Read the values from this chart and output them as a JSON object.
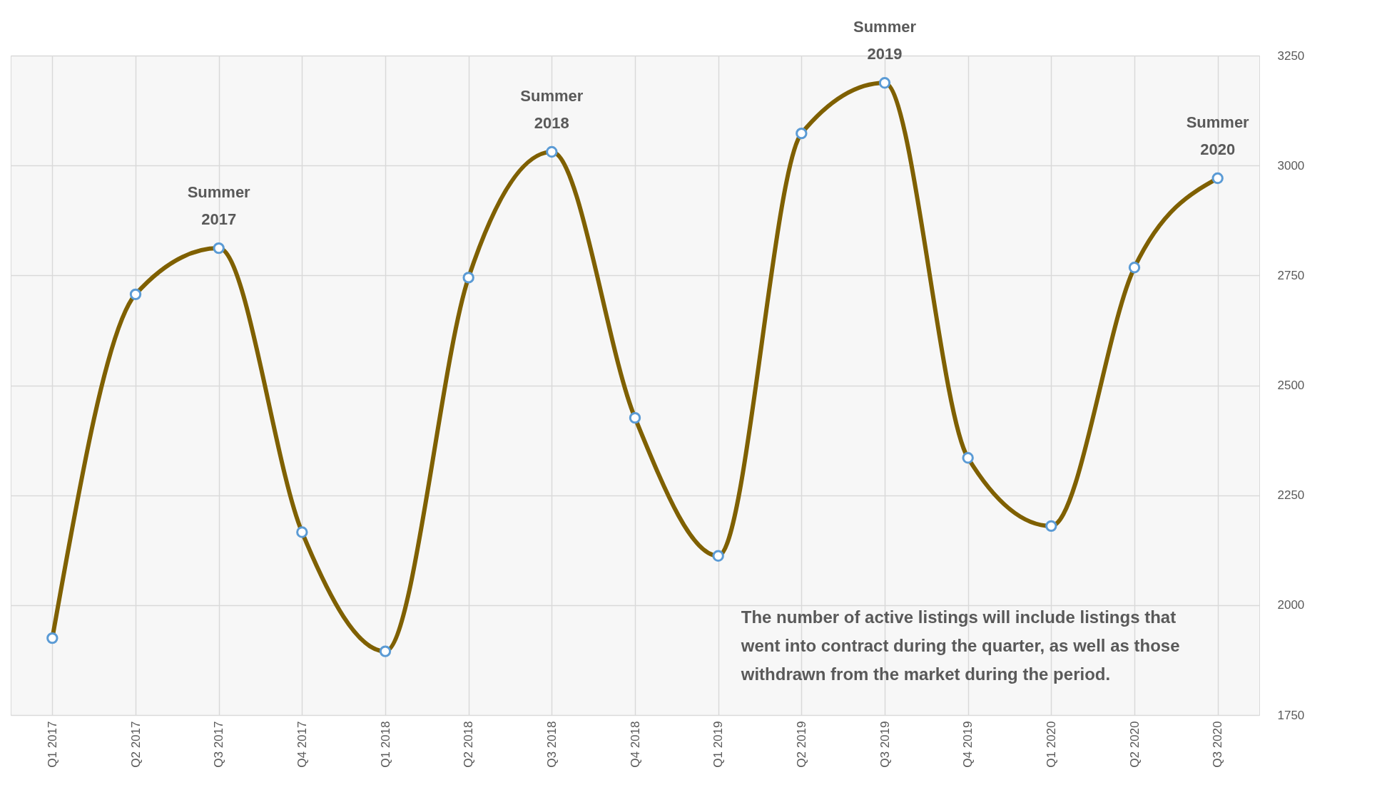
{
  "chart_data": {
    "type": "line",
    "categories": [
      "Q1 2017",
      "Q2 2017",
      "Q3 2017",
      "Q4 2017",
      "Q1 2018",
      "Q2 2018",
      "Q3 2018",
      "Q4 2018",
      "Q1 2019",
      "Q2 2019",
      "Q3 2019",
      "Q4 2019",
      "Q1 2020",
      "Q2 2020",
      "Q3 2020"
    ],
    "series": [
      {
        "color": "#7f6000",
        "values": [
          1925,
          2707,
          2812,
          2166,
          1895,
          2745,
          3031,
          2426,
          2112,
          3073,
          3188,
          2335,
          2180,
          2768,
          2971
        ]
      }
    ],
    "ylim": [
      1750,
      3250
    ],
    "yticks": [
      1750,
      2000,
      2250,
      2500,
      2750,
      3000,
      3250
    ],
    "grid": true,
    "marker": "circle",
    "line_style": "solid",
    "legend": false,
    "annotations": [
      {
        "text": "Summer 2017",
        "x": "Q3 2017",
        "y": 2812
      },
      {
        "text": "Summer 2018",
        "x": "Q3 2018",
        "y": 3031
      },
      {
        "text": "Summer 2019",
        "x": "Q3 2019",
        "y": 3188
      },
      {
        "text": "Summer 2020",
        "x": "Q3 2020",
        "y": 2971
      },
      "The number of active listings will include listings that went into contract during the quarter, as well as those withdrawn from the market during the period."
    ]
  }
}
